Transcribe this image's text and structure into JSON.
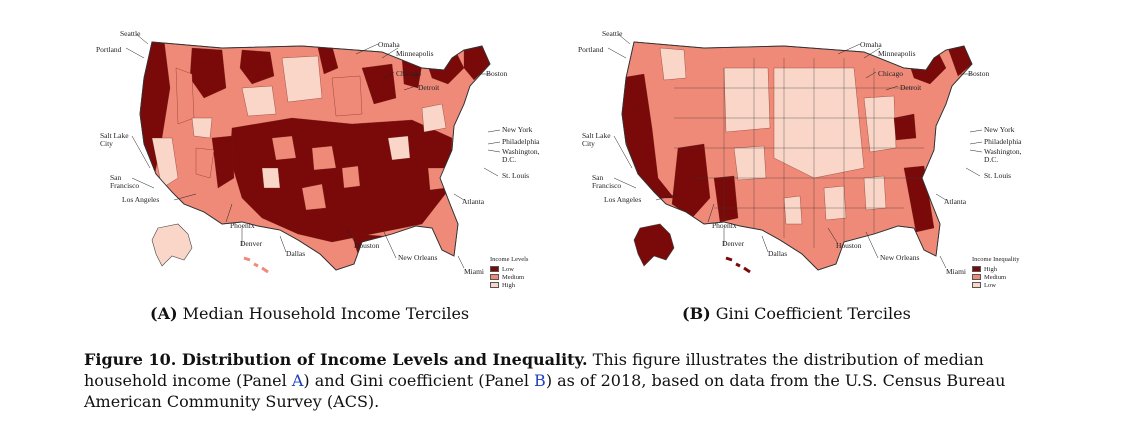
{
  "colors": {
    "dark": "#7a0a0a",
    "medium": "#ef8a78",
    "light": "#f9d6c8",
    "border": "#444444"
  },
  "city_labels": {
    "seattle": "Seattle",
    "portland": "Portland",
    "omaha": "Omaha",
    "minneapolis": "Minneapolis",
    "chicago": "Chicago",
    "detroit": "Detroit",
    "boston": "Boston",
    "salt_lake_city": "Salt Lake\nCity",
    "new_york": "New York",
    "philadelphia": "Philadelphia",
    "washington": "Washington,\nD.C.",
    "san_francisco": "San\nFrancisco",
    "st_louis": "St. Louis",
    "los_angeles": "Los Angeles",
    "atlanta": "Atlanta",
    "phoenix": "Phoenix",
    "denver": "Denver",
    "dallas": "Dallas",
    "houston": "Houston",
    "new_orleans": "New Orleans",
    "miami": "Miami"
  },
  "panel_a": {
    "label": "(A)",
    "title": "Median Household Income Terciles",
    "legend_title": "Income Levels",
    "legend": [
      {
        "label": "Low",
        "color": "#7a0a0a"
      },
      {
        "label": "Medium",
        "color": "#ef8a78"
      },
      {
        "label": "High",
        "color": "#f9d6c8"
      }
    ]
  },
  "panel_b": {
    "label": "(B)",
    "title": "Gini Coefficient Terciles",
    "legend_title": "Income Inequality",
    "legend": [
      {
        "label": "High",
        "color": "#7a0a0a"
      },
      {
        "label": "Medium",
        "color": "#ef8a78"
      },
      {
        "label": "Low",
        "color": "#f9d6c8"
      }
    ]
  },
  "caption": {
    "title": "Figure 10. Distribution of Income Levels and Inequality.",
    "text_1": " This figure illustrates the distribution of median household income (Panel ",
    "ref_a": "A",
    "text_2": ") and Gini coefficient (Panel ",
    "ref_b": "B",
    "text_3": ") as of 2018, based on data from the U.S. Census Bureau American Community Survey (ACS)."
  }
}
